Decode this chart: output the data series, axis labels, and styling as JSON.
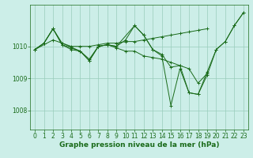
{
  "bg_color": "#cceee8",
  "line_color": "#1a6b1a",
  "grid_color": "#99ccbb",
  "xlabel": "Graphe pression niveau de la mer (hPa)",
  "xlabel_fontsize": 6.5,
  "tick_fontsize": 5.5,
  "xlim": [
    -0.5,
    23.5
  ],
  "ylim": [
    1007.4,
    1011.3
  ],
  "yticks": [
    1008,
    1009,
    1010
  ],
  "xticks": [
    0,
    1,
    2,
    3,
    4,
    5,
    6,
    7,
    8,
    9,
    10,
    11,
    12,
    13,
    14,
    15,
    16,
    17,
    18,
    19,
    20,
    21,
    22,
    23
  ],
  "series": [
    {
      "x": [
        0,
        1,
        2,
        3,
        4,
        5,
        6,
        7,
        8,
        9,
        10,
        11,
        12,
        13,
        14,
        15,
        16,
        17,
        18,
        19,
        20,
        21,
        22,
        23
      ],
      "y": [
        1009.9,
        1010.1,
        1010.55,
        1010.05,
        1009.95,
        1009.85,
        1009.6,
        1010.0,
        1010.05,
        1010.0,
        1010.2,
        1010.65,
        1010.35,
        1009.9,
        1009.7,
        1008.15,
        1009.3,
        1008.55,
        1008.5,
        1009.2,
        1009.9,
        1010.15,
        1010.65,
        1011.05
      ]
    },
    {
      "x": [
        0,
        1,
        2,
        3,
        4,
        5,
        6,
        7,
        8,
        9,
        10,
        11,
        12,
        13,
        14,
        15,
        16,
        17,
        18,
        19
      ],
      "y": [
        1009.9,
        1010.1,
        1010.55,
        1010.05,
        1009.9,
        1009.85,
        1009.55,
        1010.0,
        1010.05,
        1009.95,
        1009.85,
        1009.85,
        1009.7,
        1009.65,
        1009.6,
        1009.5,
        1009.4,
        1009.3,
        1008.85,
        1009.15
      ]
    },
    {
      "x": [
        0,
        1,
        2,
        3,
        4,
        5,
        6,
        7,
        8,
        9,
        10,
        11,
        12,
        13,
        14,
        15,
        16,
        17,
        18,
        19
      ],
      "y": [
        1009.9,
        1010.1,
        1010.55,
        1010.1,
        1010.0,
        1010.0,
        1010.0,
        1010.05,
        1010.1,
        1010.1,
        1010.15,
        1010.15,
        1010.2,
        1010.25,
        1010.3,
        1010.35,
        1010.4,
        1010.45,
        1010.5,
        1010.55
      ]
    },
    {
      "x": [
        0,
        2,
        3,
        5,
        6,
        7,
        8,
        9,
        11,
        12,
        13,
        14,
        15,
        16,
        17,
        18,
        19,
        20,
        21,
        22,
        23
      ],
      "y": [
        1009.9,
        1010.2,
        1010.1,
        1009.85,
        1009.55,
        1010.0,
        1010.05,
        1010.0,
        1010.65,
        1010.35,
        1009.9,
        1009.75,
        1009.35,
        1009.4,
        1008.55,
        1008.5,
        1009.1,
        1009.9,
        1010.15,
        1010.65,
        1011.05
      ]
    }
  ]
}
